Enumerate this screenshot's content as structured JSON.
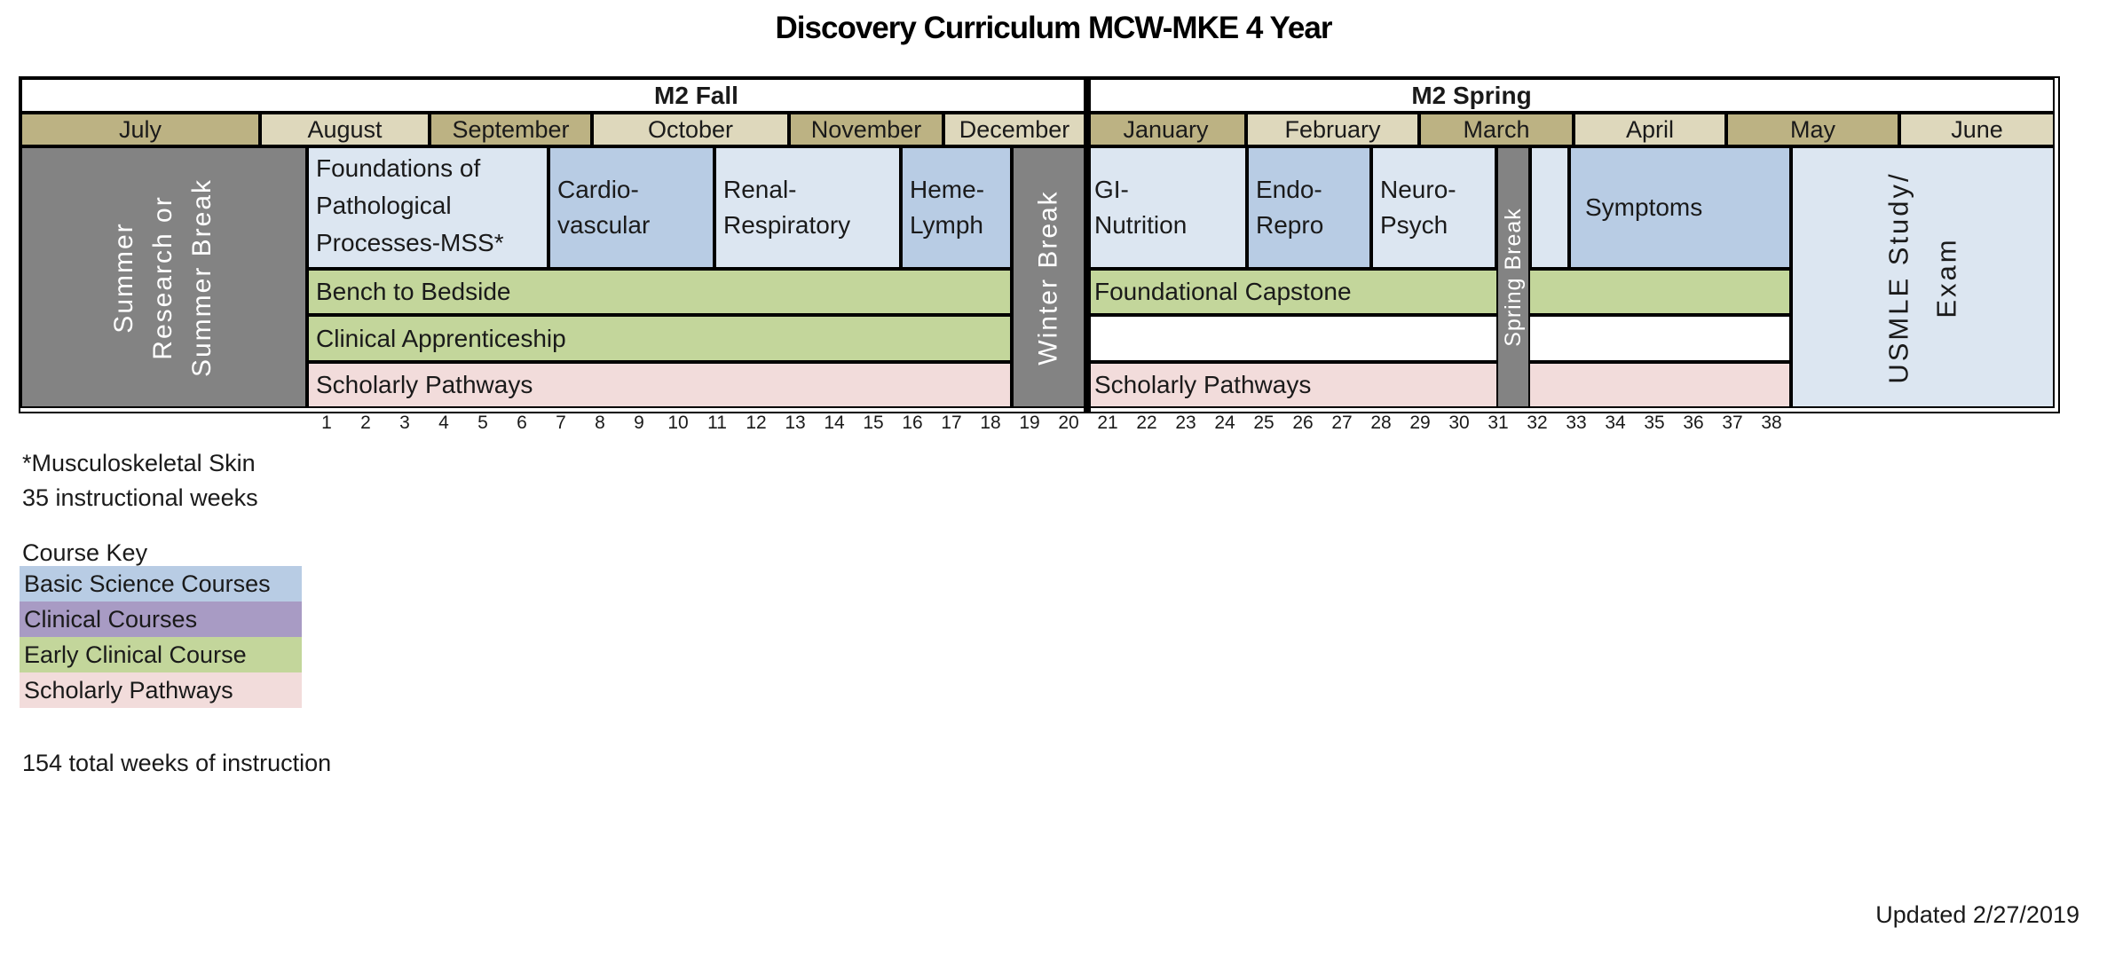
{
  "title": "Discovery Curriculum MCW-MKE 4 Year",
  "headers": {
    "fall": "M2 Fall",
    "spring": "M2 Spring"
  },
  "months": [
    "July",
    "August",
    "September",
    "October",
    "November",
    "December",
    "January",
    "February",
    "March",
    "April",
    "May",
    "June"
  ],
  "summer_block": {
    "line1": "Summer",
    "line2": "Research or",
    "line3": "Summer Break"
  },
  "winter_break": "Winter Break",
  "spring_break": "Spring Break",
  "usmle": {
    "line1": "USMLE Study/",
    "line2": "Exam"
  },
  "fall_courses": {
    "foundations": "Foundations of\nPathological\nProcesses-MSS*",
    "cardiovascular": "Cardio-\nvascular",
    "renal_respiratory": "Renal-\nRespiratory",
    "heme_lymph": "Heme-\nLymph"
  },
  "fall_rows": {
    "bench_to_bedside": "Bench to Bedside",
    "clinical_apprenticeship": "Clinical Apprenticeship",
    "scholarly_pathways": "Scholarly Pathways"
  },
  "spring_courses": {
    "gi_nutrition": "GI-\nNutrition",
    "endo_repro": "Endo-\nRepro",
    "neuro_psych": "Neuro-\nPsych",
    "symptoms": "Symptoms"
  },
  "spring_rows": {
    "foundational_capstone": "Foundational Capstone",
    "scholarly_pathways": "Scholarly Pathways"
  },
  "weeks": [
    "1",
    "2",
    "3",
    "4",
    "5",
    "6",
    "7",
    "8",
    "9",
    "10",
    "11",
    "12",
    "13",
    "14",
    "15",
    "16",
    "17",
    "18",
    "19",
    "20",
    "21",
    "22",
    "23",
    "24",
    "25",
    "26",
    "27",
    "28",
    "29",
    "30",
    "31",
    "32",
    "33",
    "34",
    "35",
    "36",
    "37",
    "38"
  ],
  "notes": {
    "footnote": "*Musculoskeletal Skin",
    "instructional_weeks": "35 instructional weeks",
    "total_weeks": "154 total weeks of instruction",
    "updated": "Updated 2/27/2019"
  },
  "legend": {
    "title": "Course Key",
    "items": [
      {
        "label": "Basic Science Courses",
        "color": "#b8cce4"
      },
      {
        "label": "Clinical Courses",
        "color": "#a89bc4"
      },
      {
        "label": "Early Clinical Course",
        "color": "#c3d69b"
      },
      {
        "label": "Scholarly Pathways",
        "color": "#f2dcdb"
      }
    ]
  },
  "colors": {
    "month_dark": "#bcb283",
    "month_light": "#ded8bc",
    "break_gray": "#838383",
    "basic_science_light": "#dce6f1",
    "basic_science_medium": "#b8cce4",
    "early_clinical_green": "#c3d69b",
    "scholarly_pink": "#f2dcdb",
    "clinical_purple": "#a89bc4",
    "border": "#000000"
  }
}
